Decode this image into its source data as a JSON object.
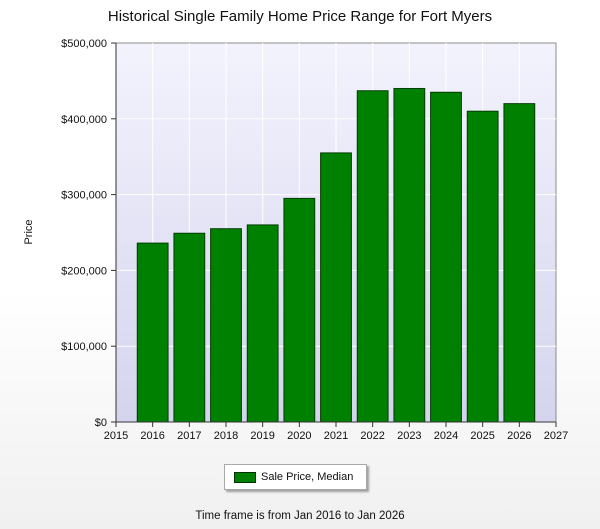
{
  "chart_data": {
    "type": "bar",
    "title": "Historical Single Family Home Price Range for Fort Myers",
    "ylabel": "Price",
    "xlabel": "",
    "x_ticks": [
      "2015",
      "2016",
      "2017",
      "2018",
      "2019",
      "2020",
      "2021",
      "2022",
      "2023",
      "2024",
      "2025",
      "2026",
      "2027"
    ],
    "x_range": [
      2015,
      2027
    ],
    "y_ticks": [
      "$0",
      "$100,000",
      "$200,000",
      "$300,000",
      "$400,000",
      "$500,000"
    ],
    "ylim": [
      0,
      500000
    ],
    "grid": true,
    "legend_position": "bottom-center",
    "series": [
      {
        "name": "Sale Price, Median",
        "color": "#008000",
        "x": [
          2016,
          2017,
          2018,
          2019,
          2020,
          2021,
          2022,
          2023,
          2024,
          2025,
          2026
        ],
        "values": [
          236000,
          249000,
          255000,
          260000,
          295000,
          355000,
          437000,
          440000,
          435000,
          410000,
          420000
        ]
      }
    ]
  },
  "footer": "Time frame is from Jan 2016 to Jan 2026"
}
